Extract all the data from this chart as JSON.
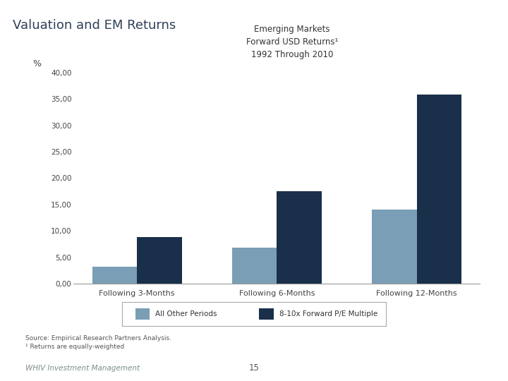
{
  "title": "Valuation and EM Returns",
  "chart_title_line1": "Emerging Markets",
  "chart_title_line2": "Forward USD Returns¹",
  "chart_title_line3": "1992 Through 2010",
  "ylabel": "%",
  "categories": [
    "Following 3-Months",
    "Following 6-Months",
    "Following 12-Months"
  ],
  "series": [
    {
      "name": "All Other Periods",
      "values": [
        3.2,
        6.8,
        14.0
      ],
      "color": "#7a9eb5"
    },
    {
      "name": "8-10x Forward P/E Multiple",
      "values": [
        8.8,
        17.5,
        35.8
      ],
      "color": "#1a2f4a"
    }
  ],
  "ylim": [
    0,
    40
  ],
  "yticks": [
    0,
    5,
    10,
    15,
    20,
    25,
    30,
    35,
    40
  ],
  "ytick_labels": [
    "0,00",
    "5,00",
    "10,00",
    "15,00",
    "20,00",
    "25,00",
    "30,00",
    "35,00",
    "40,00"
  ],
  "header_bg": "#c8cdd2",
  "chart_bg": "#ffffff",
  "footer_text1": "Source: Empirical Research Partners Analysis.",
  "footer_text2": "¹ Returns are equally-weighted",
  "footer_brand": "WHIV Investment Management",
  "page_number": "15",
  "bar_width": 0.32,
  "title_color": "#2e4057",
  "tick_color": "#444444",
  "legend_border_color": "#aaaaaa",
  "bottom_line_color": "#999999"
}
